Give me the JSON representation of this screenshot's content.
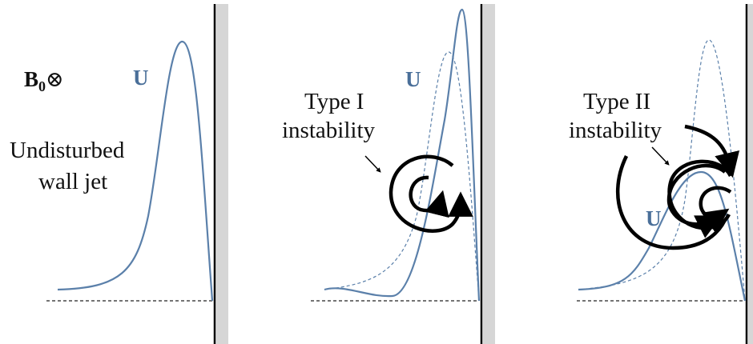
{
  "panels": [
    {
      "field": "B",
      "field_sub": "0",
      "field_dir": "⊗",
      "u": "U",
      "caption": [
        "Undisturbed",
        "wall jet"
      ]
    },
    {
      "u": "U",
      "caption": [
        "Type I",
        "instability"
      ]
    },
    {
      "u": "U",
      "caption": [
        "Type II",
        "instability"
      ]
    }
  ]
}
